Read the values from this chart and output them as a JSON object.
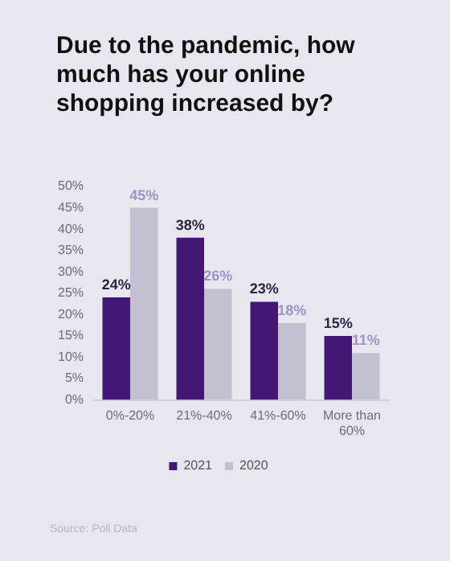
{
  "chart_data": {
    "type": "bar",
    "title": "Due to the pandemic, how much has your online shopping increased by?",
    "categories": [
      "0%-20%",
      "21%-40%",
      "41%-60%",
      "More than 60%"
    ],
    "series": [
      {
        "name": "2021",
        "color": "#431875",
        "values": [
          24,
          38,
          23,
          15
        ],
        "value_labels": [
          "24%",
          "38%",
          "23%",
          "15%"
        ]
      },
      {
        "name": "2020",
        "color": "#c3c0d2",
        "values": [
          45,
          26,
          18,
          11
        ],
        "value_labels": [
          "45%",
          "26%",
          "18%",
          "11%"
        ]
      }
    ],
    "ylim": [
      0,
      50
    ],
    "yticks": [
      {
        "value": 0,
        "label": "0%"
      },
      {
        "value": 5,
        "label": "5%"
      },
      {
        "value": 10,
        "label": "10%"
      },
      {
        "value": 15,
        "label": "15%"
      },
      {
        "value": 20,
        "label": "20%"
      },
      {
        "value": 25,
        "label": "25%"
      },
      {
        "value": 30,
        "label": "30%"
      },
      {
        "value": 35,
        "label": "35%"
      },
      {
        "value": 40,
        "label": "40%"
      },
      {
        "value": 45,
        "label": "45%"
      },
      {
        "value": 50,
        "label": "50%"
      }
    ],
    "grid": false,
    "legend": "bottom",
    "annotations": [
      "Source: Poll Data"
    ]
  }
}
